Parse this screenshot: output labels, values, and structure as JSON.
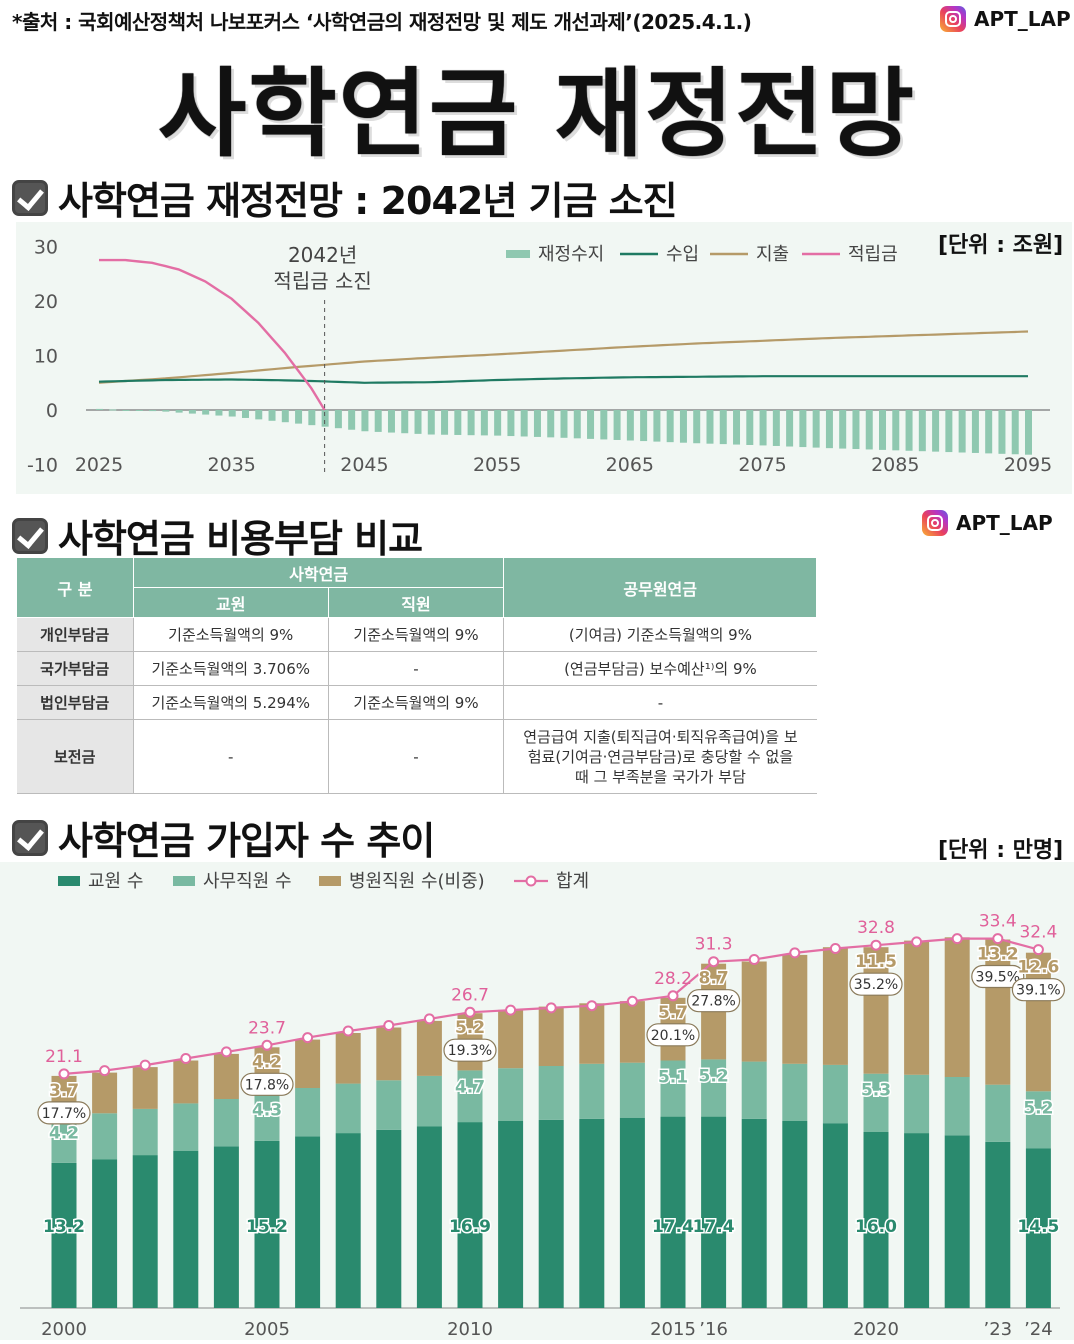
{
  "header": {
    "source": "*출처 : 국회예산정책처 나보포커스 ‘사학연금의 재정전망 및 제도 개선과제’(2025.4.1.)",
    "handle": "APT_LAP",
    "title": "사학연금 재정전망"
  },
  "section1": {
    "title": "사학연금 재정전망 : 2042년 기금 소진",
    "unit": "[단위 : 조원]",
    "annotation_line1": "2042년",
    "annotation_line2": "적립금 소진"
  },
  "section2": {
    "title": "사학연금 비용부담 비교",
    "handle": "APT_LAP",
    "table": {
      "col_group": "구 분",
      "group_private": "사학연금",
      "sub_teacher": "교원",
      "sub_staff": "직원",
      "group_public": "공무원연금",
      "rows": [
        {
          "label": "개인부담금",
          "teacher": "기준소득월액의 9%",
          "staff": "기준소득월액의 9%",
          "public": "(기여금) 기준소득월액의 9%"
        },
        {
          "label": "국가부담금",
          "teacher": "기준소득월액의 3.706%",
          "staff": "-",
          "public": "(연금부담금) 보수예산¹⁾의 9%"
        },
        {
          "label": "법인부담금",
          "teacher": "기준소득월액의 5.294%",
          "staff": "기준소득월액의 9%",
          "public": "-"
        },
        {
          "label": "보전금",
          "teacher": "-",
          "staff": "-",
          "public": "연금급여 지출(퇴직급여·퇴직유족급여)을 보험료(기여금·연금부담금)로 충당할 수 없을 때 그 부족분을 국가가 부담"
        }
      ]
    }
  },
  "section3": {
    "title": "사학연금 가입자 수 추이",
    "unit": "[단위 : 만명]"
  },
  "colors": {
    "green_dark": "#2a8a6e",
    "green_light": "#79b9a1",
    "gold": "#b59a68",
    "pink": "#e36ea4",
    "panel": "#f1f7f3"
  },
  "chart_data": [
    {
      "type": "line",
      "note": "재정수지 shown as bars; 수입, 지출, 적립금 as lines",
      "ylim": [
        -10,
        30
      ],
      "y_ticks": [
        30,
        20,
        10,
        0,
        -10
      ],
      "x_ticks": [
        "2025",
        "2035",
        "2045",
        "2055",
        "2065",
        "2075",
        "2085",
        "2095"
      ],
      "legend": [
        "재정수지",
        "수입",
        "지출",
        "적립금"
      ],
      "legend_position": "top",
      "event_year": 2042,
      "series": [
        {
          "name": "수입",
          "x": [
            2025,
            2030,
            2035,
            2040,
            2045,
            2050,
            2055,
            2060,
            2065,
            2070,
            2075,
            2080,
            2085,
            2090,
            2095
          ],
          "values": [
            5.2,
            5.5,
            5.6,
            5.4,
            5.0,
            5.1,
            5.5,
            5.8,
            6.0,
            6.1,
            6.2,
            6.2,
            6.2,
            6.2,
            6.2
          ]
        },
        {
          "name": "지출",
          "x": [
            2025,
            2030,
            2035,
            2040,
            2045,
            2050,
            2055,
            2060,
            2065,
            2070,
            2075,
            2080,
            2085,
            2090,
            2095
          ],
          "values": [
            5.0,
            5.8,
            6.8,
            7.9,
            8.9,
            9.6,
            10.2,
            10.9,
            11.6,
            12.2,
            12.7,
            13.2,
            13.6,
            14.0,
            14.4
          ]
        },
        {
          "name": "적립금",
          "x": [
            2025,
            2027,
            2029,
            2031,
            2033,
            2035,
            2037,
            2039,
            2041,
            2042
          ],
          "values": [
            27.5,
            27.5,
            27.0,
            25.8,
            23.6,
            20.4,
            16.0,
            10.5,
            4.0,
            0
          ]
        },
        {
          "name": "재정수지",
          "x": [
            2025,
            2030,
            2035,
            2040,
            2045,
            2050,
            2055,
            2060,
            2065,
            2070,
            2075,
            2080,
            2085,
            2090,
            2095
          ],
          "values": [
            0.2,
            -0.3,
            -1.2,
            -2.5,
            -3.9,
            -4.5,
            -4.7,
            -5.1,
            -5.6,
            -6.1,
            -6.5,
            -7.0,
            -7.4,
            -7.8,
            -8.2
          ]
        }
      ]
    },
    {
      "type": "bar",
      "stacked": true,
      "categories": [
        "2000",
        "2001",
        "2002",
        "2003",
        "2004",
        "2005",
        "2006",
        "2007",
        "2008",
        "2009",
        "2010",
        "2011",
        "2012",
        "2013",
        "2014",
        "2015",
        "2016",
        "2017",
        "2018",
        "2019",
        "2020",
        "2021",
        "2022",
        "2023",
        "2024"
      ],
      "x_tick_labels": [
        {
          "index": 0,
          "label": "2000"
        },
        {
          "index": 5,
          "label": "2005"
        },
        {
          "index": 10,
          "label": "2010"
        },
        {
          "index": 15,
          "label": "2015"
        },
        {
          "index": 16,
          "label": "’16"
        },
        {
          "index": 20,
          "label": "2020"
        },
        {
          "index": 23,
          "label": "’23"
        },
        {
          "index": 24,
          "label": "’24"
        }
      ],
      "legend": [
        "교원 수",
        "사무직원 수",
        "병원직원 수(비중)",
        "합계"
      ],
      "legend_position": "top-left",
      "series": [
        {
          "name": "교원 수",
          "values": [
            13.2,
            13.5,
            13.9,
            14.3,
            14.7,
            15.2,
            15.6,
            15.9,
            16.2,
            16.5,
            16.9,
            17.0,
            17.1,
            17.2,
            17.3,
            17.4,
            17.4,
            17.2,
            17.0,
            16.8,
            16.0,
            15.9,
            15.7,
            15.1,
            14.5
          ]
        },
        {
          "name": "사무직원 수",
          "values": [
            4.2,
            4.2,
            4.2,
            4.3,
            4.3,
            4.3,
            4.4,
            4.5,
            4.5,
            4.6,
            4.7,
            4.8,
            4.9,
            5.0,
            5.0,
            5.1,
            5.2,
            5.2,
            5.2,
            5.3,
            5.3,
            5.3,
            5.3,
            5.2,
            5.2
          ]
        },
        {
          "name": "병원직원 수(비중)",
          "values": [
            3.7,
            3.7,
            3.8,
            3.9,
            4.1,
            4.2,
            4.4,
            4.6,
            4.8,
            5.0,
            5.2,
            5.3,
            5.4,
            5.5,
            5.6,
            5.7,
            8.7,
            9.1,
            9.9,
            10.7,
            11.5,
            12.2,
            12.7,
            13.2,
            12.6
          ]
        },
        {
          "name": "합계",
          "values": [
            21.1,
            21.4,
            21.9,
            22.5,
            23.1,
            23.7,
            24.4,
            25.0,
            25.5,
            26.1,
            26.7,
            26.9,
            27.1,
            27.3,
            27.7,
            28.2,
            31.3,
            31.5,
            32.1,
            32.5,
            32.8,
            33.1,
            33.4,
            33.4,
            32.4
          ]
        }
      ],
      "data_labels": [
        {
          "index": 0,
          "teacher": "13.2",
          "staff": "4.2",
          "hospital": "3.7",
          "share": "17.7%",
          "total": "21.1"
        },
        {
          "index": 5,
          "teacher": "15.2",
          "staff": "4.3",
          "hospital": "4.2",
          "share": "17.8%",
          "total": "23.7"
        },
        {
          "index": 10,
          "teacher": "16.9",
          "staff": "4.7",
          "hospital": "5.2",
          "share": "19.3%",
          "total": "26.7"
        },
        {
          "index": 15,
          "teacher": "17.4",
          "staff": "5.1",
          "hospital": "5.7",
          "share": "20.1%",
          "total": "28.2"
        },
        {
          "index": 16,
          "teacher": "17.4",
          "staff": "5.2",
          "hospital": "8.7",
          "share": "27.8%",
          "total": "31.3"
        },
        {
          "index": 20,
          "teacher": "16.0",
          "staff": "5.3",
          "hospital": "11.5",
          "share": "35.2%",
          "total": "32.8"
        },
        {
          "index": 23,
          "teacher": "",
          "staff": "",
          "hospital": "13.2",
          "share": "39.5%",
          "total": "33.4"
        },
        {
          "index": 24,
          "teacher": "14.5",
          "staff": "5.2",
          "hospital": "12.6",
          "share": "39.1%",
          "total": "32.4"
        }
      ]
    }
  ]
}
